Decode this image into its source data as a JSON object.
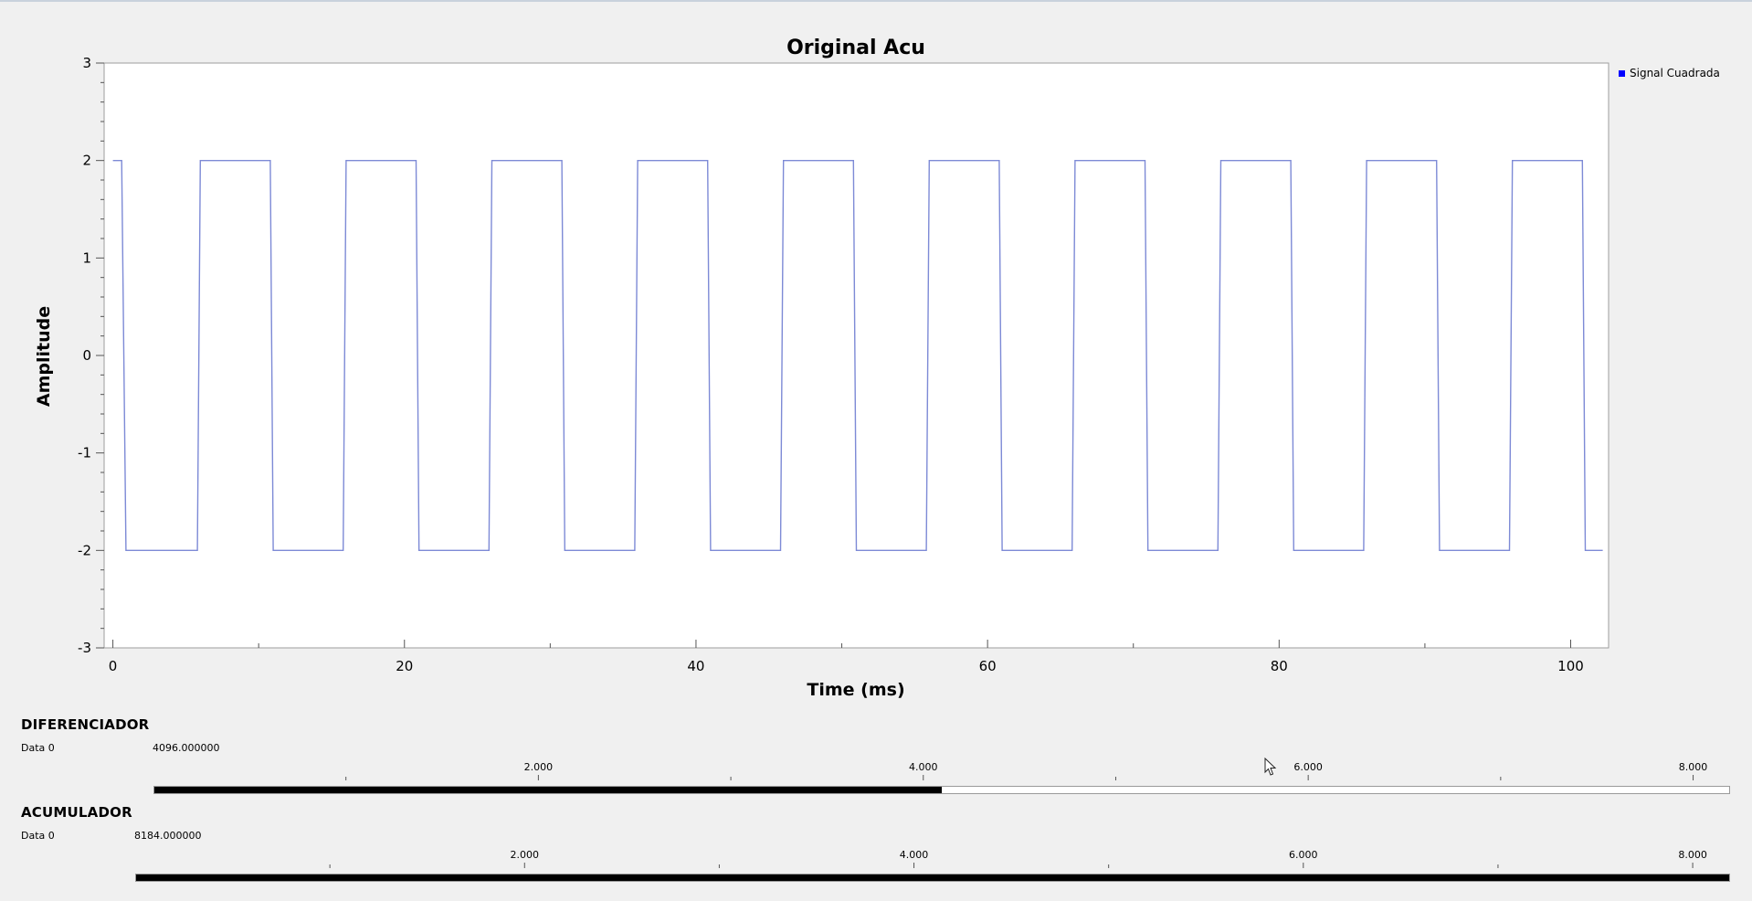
{
  "chart_data": {
    "type": "line",
    "title": "Original Acu",
    "xlabel": "Time (ms)",
    "ylabel": "Amplitude",
    "xlim": [
      -0.6,
      102.6
    ],
    "ylim": [
      -3,
      3
    ],
    "xticks": [
      0,
      20,
      40,
      60,
      80,
      100
    ],
    "yticks": [
      3,
      2,
      1,
      0,
      -1,
      -2,
      -3
    ],
    "grid": false,
    "legend_position": "top-right",
    "series": [
      {
        "name": "Signal Cuadrada",
        "color": "#7d8ad6",
        "high": 2,
        "low": -2,
        "x": [
          0.6,
          0.9,
          5.8,
          6.0,
          10.8,
          11.0,
          15.8,
          16.0,
          20.8,
          21.0,
          25.8,
          26.0,
          30.8,
          31.0,
          35.8,
          36.0,
          40.8,
          41.0,
          45.8,
          46.0,
          50.8,
          51.0,
          55.8,
          56.0,
          60.8,
          61.0,
          65.8,
          66.0,
          70.8,
          71.0,
          75.8,
          76.0,
          80.8,
          81.0,
          85.8,
          86.0,
          90.8,
          91.0,
          95.8,
          96.0,
          100.8,
          101.0
        ],
        "start_x": 0,
        "end_x": 102.2
      }
    ]
  },
  "legend_color": "#0000ff",
  "sections": [
    {
      "title": "DIFERENCIADOR",
      "data_label": "Data 0",
      "data_value": "4096.000000",
      "scale_labels": [
        "2.000",
        "4.000",
        "6.000",
        "8.000"
      ],
      "scale_min": 0,
      "scale_max": 8192,
      "level": 4096
    },
    {
      "title": "ACUMULADOR",
      "data_label": "Data 0",
      "data_value": "8184.000000",
      "scale_labels": [
        "2.000",
        "4.000",
        "6.000",
        "8.000"
      ],
      "scale_min": 0,
      "scale_max": 8184,
      "level": 8184
    }
  ]
}
